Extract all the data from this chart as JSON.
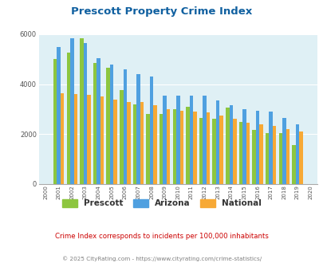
{
  "title": "Prescott Property Crime Index",
  "years": [
    2000,
    2001,
    2002,
    2003,
    2004,
    2005,
    2006,
    2007,
    2008,
    2009,
    2010,
    2011,
    2012,
    2013,
    2014,
    2015,
    2016,
    2017,
    2018,
    2019,
    2020
  ],
  "prescott": [
    0,
    5000,
    5250,
    5850,
    4850,
    4650,
    3750,
    3200,
    2800,
    2800,
    3000,
    3100,
    2650,
    2600,
    3050,
    2500,
    2175,
    2050,
    2050,
    1550,
    0
  ],
  "arizona": [
    0,
    5500,
    5850,
    5650,
    5050,
    4800,
    4600,
    4400,
    4300,
    3550,
    3550,
    3550,
    3550,
    3350,
    3150,
    3000,
    2950,
    2900,
    2650,
    2400,
    0
  ],
  "national": [
    0,
    3650,
    3600,
    3580,
    3500,
    3380,
    3300,
    3280,
    3150,
    3000,
    2950,
    2900,
    2880,
    2750,
    2600,
    2470,
    2390,
    2320,
    2200,
    2100,
    0
  ],
  "prescott_color": "#8dc63f",
  "arizona_color": "#4fa0e0",
  "national_color": "#f7a935",
  "bg_color": "#dff0f5",
  "ylim": [
    0,
    6000
  ],
  "subtitle": "Crime Index corresponds to incidents per 100,000 inhabitants",
  "footer": "© 2025 CityRating.com - https://www.cityrating.com/crime-statistics/",
  "title_color": "#1060a0",
  "subtitle_color": "#cc0000",
  "footer_color": "#808080"
}
